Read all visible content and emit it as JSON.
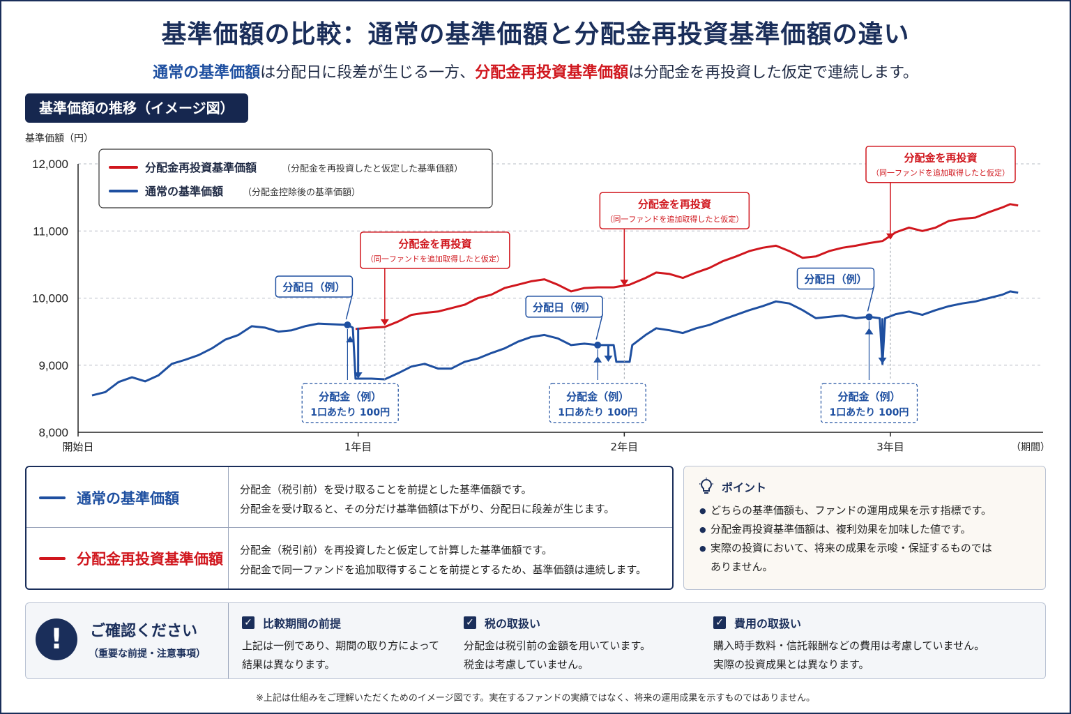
{
  "title": "基準価額の比較：通常の基準価額と分配金再投資基準価額の違い",
  "subtitle": {
    "part1": "通常の基準価額",
    "part2": "は分配日に段差が生じる一方、",
    "part3": "分配金再投資基準価額",
    "part4": "は分配金を再投資した仮定で連続します。"
  },
  "section_label": "基準価額の推移（イメージ図）",
  "colors": {
    "blue": "#1e4fa0",
    "red": "#d0161d",
    "navy": "#1a2e5a"
  },
  "chart_data": {
    "type": "line",
    "ylabel": "基準価額（円）",
    "xlabel": "（期間）",
    "ylim": [
      8000,
      12000
    ],
    "xlim": [
      0,
      3.5
    ],
    "y_ticks": [
      8000,
      9000,
      10000,
      11000,
      12000
    ],
    "y_tick_labels": [
      "8,000",
      "9,000",
      "10,000",
      "11,000",
      "12,000"
    ],
    "x_ticks": [
      0,
      1,
      2,
      3
    ],
    "x_tick_labels": [
      "開始日",
      "1年目",
      "2年目",
      "3年目"
    ],
    "grid": true,
    "legend_position": "top-left",
    "legend": [
      {
        "name": "分配金再投資基準価額",
        "note": "（分配金を再投資したと仮定した基準価額）",
        "color": "#d0161d"
      },
      {
        "name": "通常の基準価額",
        "note": "（分配金控除後の基準価額）",
        "color": "#1e4fa0"
      }
    ],
    "series": [
      {
        "name": "通常の基準価額",
        "color": "#1e4fa0",
        "points": [
          [
            0,
            8550
          ],
          [
            0.05,
            8600
          ],
          [
            0.1,
            8750
          ],
          [
            0.15,
            8820
          ],
          [
            0.2,
            8760
          ],
          [
            0.25,
            8850
          ],
          [
            0.3,
            9020
          ],
          [
            0.35,
            9080
          ],
          [
            0.4,
            9150
          ],
          [
            0.45,
            9250
          ],
          [
            0.5,
            9380
          ],
          [
            0.55,
            9450
          ],
          [
            0.6,
            9580
          ],
          [
            0.65,
            9560
          ],
          [
            0.7,
            9500
          ],
          [
            0.75,
            9520
          ],
          [
            0.8,
            9580
          ],
          [
            0.85,
            9620
          ],
          [
            0.96,
            9600
          ],
          [
            0.98,
            9560
          ],
          [
            0.99,
            8800
          ],
          [
            1.05,
            8800
          ],
          [
            1.1,
            8790
          ],
          [
            1.15,
            8880
          ],
          [
            1.2,
            8980
          ],
          [
            1.25,
            9020
          ],
          [
            1.3,
            8950
          ],
          [
            1.35,
            8950
          ],
          [
            1.4,
            9050
          ],
          [
            1.45,
            9100
          ],
          [
            1.5,
            9180
          ],
          [
            1.55,
            9250
          ],
          [
            1.6,
            9350
          ],
          [
            1.65,
            9420
          ],
          [
            1.7,
            9450
          ],
          [
            1.75,
            9400
          ],
          [
            1.8,
            9300
          ],
          [
            1.85,
            9320
          ],
          [
            1.9,
            9300
          ],
          [
            1.96,
            9300
          ],
          [
            1.97,
            9050
          ],
          [
            2.02,
            9050
          ],
          [
            2.03,
            9300
          ],
          [
            2.08,
            9450
          ],
          [
            2.12,
            9550
          ],
          [
            2.17,
            9520
          ],
          [
            2.22,
            9480
          ],
          [
            2.27,
            9550
          ],
          [
            2.32,
            9600
          ],
          [
            2.37,
            9680
          ],
          [
            2.42,
            9750
          ],
          [
            2.47,
            9820
          ],
          [
            2.52,
            9880
          ],
          [
            2.57,
            9950
          ],
          [
            2.62,
            9920
          ],
          [
            2.67,
            9820
          ],
          [
            2.72,
            9700
          ],
          [
            2.77,
            9720
          ],
          [
            2.82,
            9740
          ],
          [
            2.87,
            9700
          ],
          [
            2.92,
            9720
          ],
          [
            2.96,
            9700
          ],
          [
            2.97,
            9020
          ],
          [
            2.98,
            9700
          ],
          [
            3.02,
            9760
          ],
          [
            3.07,
            9800
          ],
          [
            3.12,
            9750
          ],
          [
            3.17,
            9820
          ],
          [
            3.22,
            9880
          ],
          [
            3.27,
            9920
          ],
          [
            3.32,
            9950
          ],
          [
            3.37,
            10000
          ],
          [
            3.42,
            10050
          ],
          [
            3.45,
            10100
          ],
          [
            3.48,
            10080
          ]
        ]
      },
      {
        "name": "分配金再投資基準価額",
        "color": "#d0161d",
        "points": [
          [
            0.99,
            9540
          ],
          [
            1.05,
            9560
          ],
          [
            1.1,
            9570
          ],
          [
            1.15,
            9650
          ],
          [
            1.2,
            9750
          ],
          [
            1.25,
            9780
          ],
          [
            1.3,
            9800
          ],
          [
            1.35,
            9850
          ],
          [
            1.4,
            9900
          ],
          [
            1.45,
            10000
          ],
          [
            1.5,
            10050
          ],
          [
            1.55,
            10150
          ],
          [
            1.6,
            10200
          ],
          [
            1.65,
            10250
          ],
          [
            1.7,
            10280
          ],
          [
            1.75,
            10200
          ],
          [
            1.8,
            10100
          ],
          [
            1.85,
            10150
          ],
          [
            1.9,
            10160
          ],
          [
            1.96,
            10160
          ],
          [
            2.02,
            10200
          ],
          [
            2.08,
            10300
          ],
          [
            2.12,
            10380
          ],
          [
            2.17,
            10360
          ],
          [
            2.22,
            10300
          ],
          [
            2.27,
            10380
          ],
          [
            2.32,
            10450
          ],
          [
            2.37,
            10550
          ],
          [
            2.42,
            10620
          ],
          [
            2.47,
            10700
          ],
          [
            2.52,
            10750
          ],
          [
            2.57,
            10780
          ],
          [
            2.62,
            10700
          ],
          [
            2.67,
            10600
          ],
          [
            2.72,
            10620
          ],
          [
            2.77,
            10700
          ],
          [
            2.82,
            10750
          ],
          [
            2.87,
            10780
          ],
          [
            2.92,
            10820
          ],
          [
            2.97,
            10850
          ],
          [
            3.02,
            10980
          ],
          [
            3.07,
            11050
          ],
          [
            3.12,
            11000
          ],
          [
            3.17,
            11050
          ],
          [
            3.22,
            11150
          ],
          [
            3.27,
            11180
          ],
          [
            3.32,
            11200
          ],
          [
            3.37,
            11280
          ],
          [
            3.42,
            11350
          ],
          [
            3.45,
            11400
          ],
          [
            3.48,
            11380
          ]
        ]
      }
    ],
    "annotations": [
      {
        "id": "d1",
        "type": "dividend_day",
        "label": "分配日（例）",
        "x": 0.96,
        "y": 9600
      },
      {
        "id": "d2",
        "type": "dividend_day",
        "label": "分配日（例）",
        "x": 1.9,
        "y": 9300
      },
      {
        "id": "d3",
        "type": "dividend_day",
        "label": "分配日（例）",
        "x": 2.92,
        "y": 9720
      },
      {
        "id": "a1",
        "type": "dividend_amount",
        "label": "分配金（例）",
        "sub": "1口あたり 100円",
        "x": 1.0,
        "from": 9560,
        "to": 8800
      },
      {
        "id": "a2",
        "type": "dividend_amount",
        "label": "分配金（例）",
        "sub": "1口あたり 100円",
        "x": 1.94,
        "from": 9300,
        "to": 9050
      },
      {
        "id": "a3",
        "type": "dividend_amount",
        "label": "分配金（例）",
        "sub": "1口あたり 100円",
        "x": 2.97,
        "from": 9700,
        "to": 9020
      },
      {
        "id": "r1",
        "type": "reinvest",
        "label": "分配金を再投資",
        "sub": "（同一ファンドを追加取得したと仮定）",
        "x": 1.1,
        "y": 9570
      },
      {
        "id": "r2",
        "type": "reinvest",
        "label": "分配金を再投資",
        "sub": "（同一ファンドを追加取得したと仮定）",
        "x": 2.0,
        "y": 10160
      },
      {
        "id": "r3",
        "type": "reinvest",
        "label": "分配金を再投資",
        "sub": "（同一ファンドを追加取得したと仮定）",
        "x": 3.0,
        "y": 10850
      }
    ]
  },
  "definitions": [
    {
      "name": "通常の基準価額",
      "color": "#1e4fa0",
      "line1": "分配金（税引前）を受け取ることを前提とした基準価額です。",
      "line2": "分配金を受け取ると、その分だけ基準価額は下がり、分配日に段差が生じます。"
    },
    {
      "name": "分配金再投資基準価額",
      "color": "#d0161d",
      "line1": "分配金（税引前）を再投資したと仮定して計算した基準価額です。",
      "line2": "分配金で同一ファンドを追加取得することを前提とするため、基準価額は連続します。"
    }
  ],
  "point": {
    "icon": "lightbulb-icon",
    "title": "ポイント",
    "items": [
      "どちらの基準価額も、ファンドの運用成果を示す指標です。",
      "分配金再投資基準価額は、複利効果を加味した値です。",
      "実際の投資において、将来の成果を示唆・保証するものでは",
      "ありません。"
    ]
  },
  "confirm": {
    "icon": "exclamation-icon",
    "title": "ご確認ください",
    "subtitle": "（重要な前提・注意事項）",
    "items": [
      {
        "title": "比較期間の前提",
        "line1": "上記は一例であり、期間の取り方によって",
        "line2": "結果は異なります。"
      },
      {
        "title": "税の取扱い",
        "line1": "分配金は税引前の金額を用いています。",
        "line2": "税金は考慮していません。"
      },
      {
        "title": "費用の取扱い",
        "line1": "購入時手数料・信託報酬などの費用は考慮していません。",
        "line2": "実際の投資成果とは異なります。"
      }
    ]
  },
  "footnote": "※上記は仕組みをご理解いただくためのイメージ図です。実在するファンドの実績ではなく、将来の運用成果を示すものではありません。"
}
